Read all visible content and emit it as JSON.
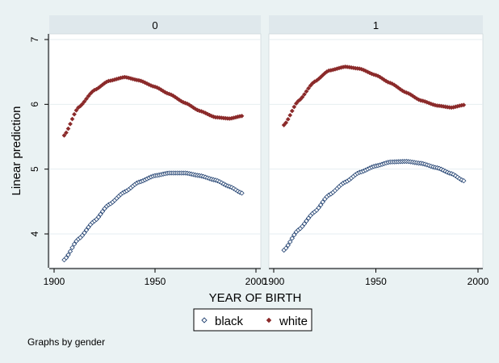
{
  "footer_note": "Graphs by gender",
  "chart_data": {
    "type": "scatter",
    "xlabel": "YEAR OF BIRTH",
    "ylabel": "Linear prediction",
    "xlim": [
      1900,
      2000
    ],
    "ylim": [
      3.5,
      7.2
    ],
    "xticks": [
      1900,
      1950,
      2000
    ],
    "yticks": [
      4,
      5,
      6,
      7
    ],
    "grid": "horizontal",
    "legend": {
      "position": "bottom",
      "entries": [
        {
          "label": "black",
          "marker": "hollow-diamond",
          "color": "#1f3f6f"
        },
        {
          "label": "white",
          "marker": "filled-diamond",
          "color": "#8b2a2a"
        }
      ]
    },
    "colors": {
      "background": "#eaf2f3",
      "panel": "#ffffff",
      "strip": "#dfe8ec",
      "grid": "#e6eef1",
      "black_series": "#1f3f6f",
      "white_series": "#8b2a2a"
    },
    "panels": [
      {
        "title": "0",
        "series": [
          {
            "name": "white",
            "x_range": [
              1905,
              1993
            ],
            "keypoints": [
              [
                1905,
                5.52
              ],
              [
                1912,
                5.95
              ],
              [
                1920,
                6.22
              ],
              [
                1927,
                6.36
              ],
              [
                1935,
                6.42
              ],
              [
                1942,
                6.37
              ],
              [
                1950,
                6.27
              ],
              [
                1957,
                6.16
              ],
              [
                1965,
                6.02
              ],
              [
                1972,
                5.9
              ],
              [
                1980,
                5.8
              ],
              [
                1987,
                5.78
              ],
              [
                1993,
                5.82
              ]
            ]
          },
          {
            "name": "black",
            "x_range": [
              1905,
              1993
            ],
            "keypoints": [
              [
                1905,
                3.6
              ],
              [
                1912,
                3.92
              ],
              [
                1920,
                4.2
              ],
              [
                1927,
                4.45
              ],
              [
                1935,
                4.65
              ],
              [
                1942,
                4.8
              ],
              [
                1950,
                4.9
              ],
              [
                1957,
                4.94
              ],
              [
                1965,
                4.94
              ],
              [
                1972,
                4.9
              ],
              [
                1980,
                4.83
              ],
              [
                1987,
                4.73
              ],
              [
                1993,
                4.63
              ]
            ]
          }
        ]
      },
      {
        "title": "1",
        "series": [
          {
            "name": "white",
            "x_range": [
              1905,
              1993
            ],
            "keypoints": [
              [
                1905,
                5.68
              ],
              [
                1912,
                6.05
              ],
              [
                1920,
                6.35
              ],
              [
                1927,
                6.52
              ],
              [
                1935,
                6.58
              ],
              [
                1942,
                6.55
              ],
              [
                1950,
                6.45
              ],
              [
                1957,
                6.33
              ],
              [
                1965,
                6.18
              ],
              [
                1972,
                6.06
              ],
              [
                1980,
                5.98
              ],
              [
                1987,
                5.95
              ],
              [
                1993,
                5.99
              ]
            ]
          },
          {
            "name": "black",
            "x_range": [
              1905,
              1993
            ],
            "keypoints": [
              [
                1905,
                3.75
              ],
              [
                1912,
                4.06
              ],
              [
                1920,
                4.34
              ],
              [
                1927,
                4.6
              ],
              [
                1935,
                4.8
              ],
              [
                1942,
                4.95
              ],
              [
                1950,
                5.05
              ],
              [
                1957,
                5.11
              ],
              [
                1965,
                5.12
              ],
              [
                1972,
                5.09
              ],
              [
                1980,
                5.02
              ],
              [
                1987,
                4.93
              ],
              [
                1993,
                4.82
              ]
            ]
          }
        ]
      }
    ]
  }
}
